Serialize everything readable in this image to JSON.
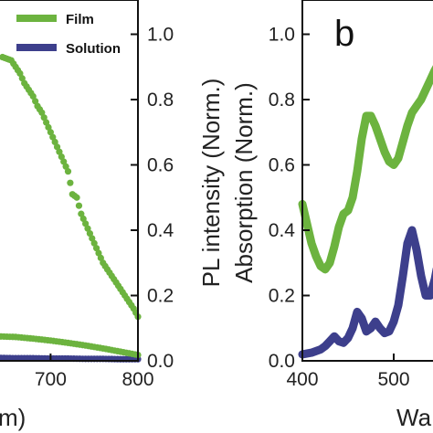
{
  "chart_data": [
    {
      "type": "scatter",
      "x_ticks": [
        "700",
        "800"
      ],
      "y_ticks": [
        "0.0",
        "0.2",
        "0.4",
        "0.6",
        "0.8",
        "1.0"
      ],
      "x_range": [
        640,
        800
      ],
      "ylim": [
        0,
        1.02
      ],
      "ylabel": "PL intensity (Norm.)",
      "xlabel_visible": "m)",
      "legend": {
        "position": "top-right",
        "items": [
          {
            "name": "Film",
            "color": "#6cb33f"
          },
          {
            "name": "Solution",
            "color": "#3d3f8c"
          }
        ]
      },
      "series": [
        {
          "name": "Film",
          "color": "#6cb33f",
          "x": [
            645,
            650,
            655,
            660,
            665,
            670,
            675,
            680,
            685,
            690,
            695,
            700,
            705,
            710,
            715,
            720,
            725,
            730,
            735,
            740,
            745,
            750,
            755,
            760,
            765,
            770,
            775,
            780,
            785,
            790,
            795,
            800
          ],
          "y": [
            0.93,
            0.925,
            0.92,
            0.9,
            0.88,
            0.85,
            0.83,
            0.81,
            0.78,
            0.76,
            0.73,
            0.7,
            0.67,
            0.64,
            0.61,
            0.58,
            0.51,
            0.5,
            0.45,
            0.42,
            0.39,
            0.36,
            0.33,
            0.3,
            0.28,
            0.26,
            0.24,
            0.22,
            0.2,
            0.18,
            0.16,
            0.135
          ]
        },
        {
          "name": "Solution",
          "color": "#3d3f8c",
          "x": [
            640,
            660,
            680,
            700,
            720,
            740,
            760,
            780,
            800
          ],
          "y": [
            0.009,
            0.008,
            0.008,
            0.007,
            0.007,
            0.006,
            0.006,
            0.005,
            0.005
          ]
        },
        {
          "name": "",
          "color": "#6cb33f",
          "x": [
            640,
            660,
            680,
            700,
            720,
            740,
            760,
            780,
            800
          ],
          "y": [
            0.075,
            0.073,
            0.068,
            0.062,
            0.055,
            0.047,
            0.038,
            0.028,
            0.018
          ]
        }
      ]
    },
    {
      "type": "line",
      "panel_label": "b",
      "x_ticks": [
        "400",
        "500"
      ],
      "y_ticks": [
        "0.0",
        "0.2",
        "0.4",
        "0.6",
        "0.8",
        "1.0"
      ],
      "x_range": [
        400,
        547
      ],
      "ylim": [
        0,
        1.02
      ],
      "ylabel": "Absorption (Norm.)",
      "xlabel_visible": "Wa",
      "series": [
        {
          "name": "Film",
          "color": "#6cb33f",
          "x": [
            400,
            405,
            410,
            415,
            420,
            425,
            430,
            435,
            440,
            445,
            450,
            455,
            460,
            465,
            470,
            475,
            480,
            485,
            490,
            495,
            500,
            505,
            510,
            515,
            520,
            525,
            530,
            535,
            540,
            545,
            547
          ],
          "y": [
            0.48,
            0.42,
            0.36,
            0.32,
            0.29,
            0.28,
            0.3,
            0.35,
            0.41,
            0.45,
            0.46,
            0.5,
            0.58,
            0.68,
            0.75,
            0.75,
            0.72,
            0.68,
            0.64,
            0.61,
            0.6,
            0.62,
            0.67,
            0.72,
            0.76,
            0.78,
            0.8,
            0.83,
            0.86,
            0.89,
            0.9
          ]
        },
        {
          "name": "Solution",
          "color": "#3d3f8c",
          "x": [
            400,
            410,
            420,
            425,
            430,
            435,
            440,
            445,
            450,
            455,
            460,
            465,
            470,
            475,
            480,
            485,
            490,
            495,
            500,
            505,
            510,
            515,
            520,
            525,
            530,
            535,
            540,
            545,
            547
          ],
          "y": [
            0.02,
            0.025,
            0.035,
            0.045,
            0.06,
            0.075,
            0.06,
            0.055,
            0.07,
            0.1,
            0.15,
            0.13,
            0.09,
            0.1,
            0.12,
            0.1,
            0.085,
            0.09,
            0.12,
            0.17,
            0.26,
            0.36,
            0.4,
            0.34,
            0.26,
            0.2,
            0.2,
            0.25,
            0.28
          ]
        }
      ]
    }
  ]
}
